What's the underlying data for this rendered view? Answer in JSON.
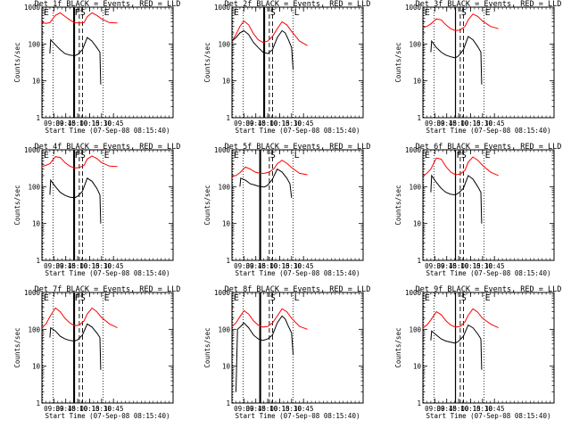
{
  "chart_data": {
    "type": "line",
    "layout": "3x3 grid",
    "xlabel": "Start Time (07-Sep-08 08:15:40)",
    "ylabel": "Counts/sec",
    "yscale": "log",
    "ylim": [
      1,
      1000
    ],
    "yticks": [
      "1",
      "10",
      "100",
      "1000"
    ],
    "x_unit": "minutes of day",
    "xlim": [
      495,
      660
    ],
    "xticks": [
      {
        "value": 510,
        "label": "09:30"
      },
      {
        "value": 525,
        "label": "09:45"
      },
      {
        "value": 540,
        "label": "10:00"
      },
      {
        "value": 555,
        "label": "10:15"
      },
      {
        "value": 570,
        "label": "10:30"
      },
      {
        "value": 585,
        "label": "10:45"
      }
    ],
    "colors": {
      "events": "#000000",
      "lld": "#ff0000"
    },
    "series_names": [
      "Events",
      "LLD"
    ],
    "panels": [
      {
        "title": "Det 1f BLACK = Events, RED = LLD",
        "markers": [
          {
            "x": 496,
            "label": "E",
            "style": "dotted"
          },
          {
            "x": 509,
            "label": "",
            "style": "dotted"
          },
          {
            "x": 535,
            "label": "F",
            "style": "solid"
          },
          {
            "x": 536,
            "label": "",
            "style": "solid"
          },
          {
            "x": 542,
            "label": "S",
            "style": "dashed"
          },
          {
            "x": 546,
            "label": "",
            "style": "dashed"
          },
          {
            "x": 572,
            "label": "E",
            "style": "dotted"
          }
        ],
        "events": {
          "x": [
            505,
            506,
            512,
            518,
            524,
            530,
            536,
            540,
            546,
            552,
            558,
            564,
            568,
            569
          ],
          "y": [
            55,
            130,
            95,
            70,
            55,
            50,
            48,
            52,
            70,
            150,
            120,
            80,
            60,
            8
          ]
        },
        "lld": {
          "x": [
            495,
            500,
            505,
            512,
            518,
            524,
            530,
            536,
            542,
            548,
            552,
            558,
            564,
            570,
            580,
            590
          ],
          "y": [
            380,
            360,
            380,
            600,
            700,
            560,
            450,
            380,
            370,
            380,
            550,
            700,
            600,
            480,
            380,
            370
          ]
        }
      },
      {
        "title": "Det 2f BLACK = Events, RED = LLD",
        "markers": [
          {
            "x": 496,
            "label": "E",
            "style": "dotted"
          },
          {
            "x": 509,
            "label": "",
            "style": "dotted"
          },
          {
            "x": 535,
            "label": "",
            "style": "solid"
          },
          {
            "x": 536,
            "label": "",
            "style": "solid"
          },
          {
            "x": 542,
            "label": "S",
            "style": "dashed"
          },
          {
            "x": 546,
            "label": "",
            "style": "dashed"
          },
          {
            "x": 572,
            "label": "L",
            "style": "dotted"
          }
        ],
        "events": {
          "x": [
            495,
            500,
            505,
            510,
            516,
            522,
            528,
            534,
            540,
            546,
            552,
            558,
            562,
            566,
            570,
            572
          ],
          "y": [
            120,
            150,
            200,
            230,
            180,
            110,
            80,
            60,
            55,
            70,
            150,
            230,
            200,
            130,
            80,
            20
          ]
        },
        "lld": {
          "x": [
            495,
            500,
            505,
            510,
            516,
            522,
            528,
            534,
            540,
            546,
            552,
            558,
            564,
            570,
            580,
            590
          ],
          "y": [
            120,
            180,
            300,
            420,
            330,
            190,
            130,
            110,
            120,
            160,
            260,
            400,
            330,
            220,
            120,
            90
          ]
        }
      },
      {
        "title": "Det 3f BLACK = Events, RED = LLD",
        "markers": [
          {
            "x": 496,
            "label": "E",
            "style": "dotted"
          },
          {
            "x": 509,
            "label": "",
            "style": "dotted"
          },
          {
            "x": 536,
            "label": "",
            "style": "solid"
          },
          {
            "x": 542,
            "label": "S",
            "style": "dashed"
          },
          {
            "x": 546,
            "label": "",
            "style": "dashed"
          },
          {
            "x": 572,
            "label": "E",
            "style": "dotted"
          }
        ],
        "events": {
          "x": [
            505,
            506,
            512,
            518,
            524,
            530,
            536,
            540,
            546,
            552,
            558,
            564,
            568,
            569
          ],
          "y": [
            60,
            120,
            80,
            60,
            50,
            45,
            42,
            48,
            70,
            160,
            130,
            85,
            60,
            8
          ]
        },
        "lld": {
          "x": [
            495,
            500,
            505,
            512,
            518,
            524,
            530,
            536,
            542,
            548,
            552,
            558,
            564,
            570,
            580,
            590
          ],
          "y": [
            280,
            300,
            350,
            480,
            450,
            330,
            260,
            230,
            240,
            300,
            450,
            650,
            560,
            420,
            300,
            260
          ]
        }
      },
      {
        "title": "Det 4f BLACK = Events, RED = LLD",
        "markers": [
          {
            "x": 496,
            "label": "E",
            "style": "dotted"
          },
          {
            "x": 509,
            "label": "",
            "style": "dotted"
          },
          {
            "x": 535,
            "label": "F",
            "style": "solid"
          },
          {
            "x": 536,
            "label": "",
            "style": "solid"
          },
          {
            "x": 542,
            "label": "S",
            "style": "dashed"
          },
          {
            "x": 546,
            "label": "",
            "style": "dashed"
          },
          {
            "x": 572,
            "label": "E",
            "style": "dotted"
          }
        ],
        "events": {
          "x": [
            505,
            506,
            512,
            518,
            524,
            530,
            536,
            540,
            546,
            552,
            558,
            564,
            568,
            569
          ],
          "y": [
            60,
            150,
            100,
            70,
            58,
            52,
            50,
            55,
            75,
            170,
            140,
            90,
            60,
            10
          ]
        },
        "lld": {
          "x": [
            495,
            500,
            505,
            512,
            518,
            524,
            530,
            536,
            542,
            548,
            552,
            558,
            564,
            570,
            580,
            590
          ],
          "y": [
            350,
            380,
            420,
            650,
            620,
            450,
            360,
            320,
            330,
            380,
            560,
            680,
            580,
            450,
            360,
            350
          ]
        }
      },
      {
        "title": "Det 5f BLACK = Events, RED = LLD",
        "markers": [
          {
            "x": 496,
            "label": "E",
            "style": "dotted"
          },
          {
            "x": 509,
            "label": "",
            "style": "dotted"
          },
          {
            "x": 530,
            "label": "",
            "style": "solid"
          },
          {
            "x": 531,
            "label": "",
            "style": "solid"
          },
          {
            "x": 542,
            "label": "S",
            "style": "dashed"
          },
          {
            "x": 546,
            "label": "",
            "style": "dashed"
          },
          {
            "x": 572,
            "label": "L",
            "style": "dotted"
          }
        ],
        "events": {
          "x": [
            505,
            506,
            512,
            518,
            524,
            530,
            536,
            540,
            546,
            552,
            558,
            564,
            568,
            570
          ],
          "y": [
            100,
            170,
            150,
            120,
            110,
            100,
            98,
            110,
            160,
            300,
            250,
            170,
            120,
            50
          ]
        },
        "lld": {
          "x": [
            495,
            500,
            505,
            512,
            518,
            524,
            530,
            536,
            542,
            548,
            552,
            558,
            564,
            570,
            580,
            590
          ],
          "y": [
            190,
            200,
            240,
            340,
            300,
            250,
            230,
            230,
            250,
            310,
            420,
            520,
            430,
            330,
            230,
            210
          ]
        }
      },
      {
        "title": "Det 6f BLACK = Events, RED = LLD",
        "markers": [
          {
            "x": 496,
            "label": "E",
            "style": "dotted"
          },
          {
            "x": 509,
            "label": "",
            "style": "dotted"
          },
          {
            "x": 536,
            "label": "F",
            "style": "solid"
          },
          {
            "x": 542,
            "label": "S",
            "style": "dashed"
          },
          {
            "x": 546,
            "label": "",
            "style": "dashed"
          },
          {
            "x": 572,
            "label": "E",
            "style": "dotted"
          }
        ],
        "events": {
          "x": [
            505,
            506,
            512,
            518,
            524,
            530,
            536,
            540,
            546,
            552,
            558,
            564,
            568,
            569
          ],
          "y": [
            70,
            200,
            130,
            90,
            70,
            62,
            60,
            68,
            90,
            200,
            160,
            100,
            70,
            10
          ]
        },
        "lld": {
          "x": [
            495,
            500,
            505,
            512,
            518,
            524,
            530,
            536,
            542,
            548,
            552,
            558,
            564,
            570,
            580,
            590
          ],
          "y": [
            200,
            230,
            300,
            600,
            560,
            350,
            250,
            210,
            220,
            280,
            460,
            640,
            520,
            380,
            250,
            200
          ]
        }
      },
      {
        "title": "Det 7f BLACK = Events, RED = LLD",
        "markers": [
          {
            "x": 496,
            "label": "E",
            "style": "dotted"
          },
          {
            "x": 509,
            "label": "",
            "style": "dotted"
          },
          {
            "x": 535,
            "label": "F",
            "style": "solid"
          },
          {
            "x": 536,
            "label": "",
            "style": "solid"
          },
          {
            "x": 542,
            "label": "S",
            "style": "dashed"
          },
          {
            "x": 546,
            "label": "",
            "style": "dashed"
          },
          {
            "x": 572,
            "label": "E",
            "style": "dotted"
          }
        ],
        "events": {
          "x": [
            505,
            506,
            512,
            518,
            524,
            530,
            536,
            540,
            546,
            552,
            558,
            564,
            568,
            569
          ],
          "y": [
            60,
            110,
            90,
            65,
            55,
            50,
            48,
            52,
            70,
            140,
            115,
            80,
            60,
            8
          ]
        },
        "lld": {
          "x": [
            495,
            500,
            505,
            512,
            518,
            524,
            530,
            536,
            542,
            548,
            552,
            558,
            564,
            570,
            580,
            590
          ],
          "y": [
            110,
            140,
            220,
            380,
            300,
            200,
            150,
            125,
            130,
            170,
            260,
            380,
            300,
            210,
            140,
            110
          ]
        }
      },
      {
        "title": "Det 8f BLACK = Events, RED = LLD",
        "markers": [
          {
            "x": 496,
            "label": "E",
            "style": "dotted"
          },
          {
            "x": 509,
            "label": "",
            "style": "dotted"
          },
          {
            "x": 530,
            "label": "",
            "style": "solid"
          },
          {
            "x": 531,
            "label": "",
            "style": "solid"
          },
          {
            "x": 542,
            "label": "S",
            "style": "dashed"
          },
          {
            "x": 546,
            "label": "",
            "style": "dashed"
          },
          {
            "x": 572,
            "label": "L",
            "style": "dotted"
          }
        ],
        "events": {
          "x": [
            500,
            502,
            506,
            510,
            516,
            522,
            528,
            534,
            540,
            546,
            552,
            558,
            562,
            566,
            570,
            572
          ],
          "y": [
            2,
            100,
            120,
            150,
            110,
            70,
            55,
            50,
            55,
            70,
            150,
            230,
            190,
            120,
            80,
            20
          ]
        },
        "lld": {
          "x": [
            495,
            500,
            505,
            510,
            516,
            522,
            528,
            534,
            540,
            546,
            552,
            558,
            564,
            570,
            580,
            590
          ],
          "y": [
            120,
            150,
            220,
            320,
            260,
            170,
            130,
            115,
            120,
            150,
            230,
            360,
            300,
            200,
            120,
            100
          ]
        }
      },
      {
        "title": "Det 9f BLACK = Events, RED = LLD",
        "markers": [
          {
            "x": 496,
            "label": "E",
            "style": "dotted"
          },
          {
            "x": 509,
            "label": "",
            "style": "dotted"
          },
          {
            "x": 536,
            "label": "",
            "style": "solid"
          },
          {
            "x": 542,
            "label": "S",
            "style": "dashed"
          },
          {
            "x": 546,
            "label": "",
            "style": "dashed"
          },
          {
            "x": 572,
            "label": "E",
            "style": "dotted"
          }
        ],
        "events": {
          "x": [
            505,
            506,
            512,
            518,
            524,
            530,
            536,
            540,
            546,
            552,
            558,
            564,
            568,
            569
          ],
          "y": [
            50,
            90,
            70,
            55,
            48,
            45,
            42,
            48,
            65,
            130,
            110,
            75,
            55,
            8
          ]
        },
        "lld": {
          "x": [
            495,
            500,
            505,
            512,
            518,
            524,
            530,
            536,
            542,
            548,
            552,
            558,
            564,
            570,
            580,
            590
          ],
          "y": [
            110,
            130,
            180,
            300,
            250,
            170,
            130,
            115,
            120,
            160,
            240,
            360,
            290,
            200,
            140,
            110
          ]
        }
      }
    ]
  }
}
